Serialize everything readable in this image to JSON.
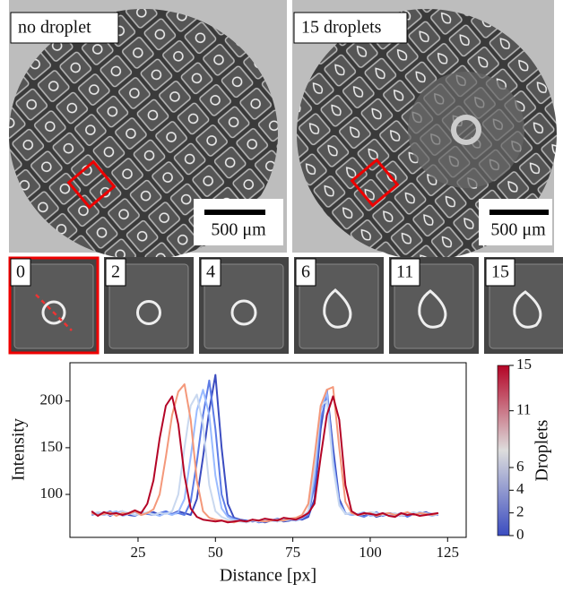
{
  "panels": {
    "top": [
      {
        "label": "no droplet",
        "scale_bar": "500 μm"
      },
      {
        "label": "15 droplets",
        "scale_bar": "500 μm"
      }
    ],
    "thumbnails": [
      "0",
      "2",
      "4",
      "6",
      "11",
      "15"
    ]
  },
  "chart_data": {
    "type": "line",
    "xlabel": "Distance [px]",
    "ylabel": "Intensity",
    "xlim": [
      3,
      131
    ],
    "ylim": [
      54,
      241
    ],
    "xticks": [
      25,
      50,
      75,
      100,
      125
    ],
    "yticks": [
      100,
      150,
      200
    ],
    "x": [
      10,
      12,
      14,
      16,
      18,
      20,
      22,
      24,
      26,
      28,
      30,
      32,
      34,
      36,
      38,
      40,
      42,
      44,
      46,
      48,
      50,
      52,
      54,
      56,
      58,
      60,
      62,
      64,
      66,
      68,
      70,
      72,
      74,
      76,
      78,
      80,
      82,
      84,
      86,
      88,
      90,
      92,
      94,
      96,
      98,
      100,
      102,
      104,
      106,
      108,
      110,
      112,
      114,
      116,
      118,
      120,
      122
    ],
    "series": [
      {
        "color": "#3b4cc0",
        "values": [
          80,
          78,
          81,
          77,
          80,
          82,
          78,
          77,
          80,
          79,
          81,
          78,
          80,
          79,
          82,
          80,
          78,
          95,
          140,
          190,
          228,
          150,
          90,
          75,
          73,
          72,
          71,
          72,
          70,
          72,
          73,
          71,
          72,
          74,
          73,
          76,
          95,
          170,
          212,
          150,
          95,
          80,
          78,
          79,
          77,
          80,
          76,
          78,
          80,
          79,
          77,
          78,
          80,
          79,
          81,
          78,
          80
        ]
      },
      {
        "color": "#5d7ce6",
        "values": [
          78,
          80,
          79,
          82,
          78,
          79,
          80,
          77,
          81,
          79,
          78,
          80,
          82,
          79,
          80,
          78,
          92,
          135,
          185,
          222,
          170,
          100,
          78,
          74,
          72,
          71,
          73,
          70,
          71,
          72,
          74,
          72,
          73,
          72,
          74,
          78,
          110,
          180,
          205,
          140,
          92,
          79,
          80,
          78,
          76,
          79,
          81,
          77,
          79,
          78,
          80,
          76,
          79,
          78,
          80,
          79,
          78
        ]
      },
      {
        "color": "#9abbff",
        "values": [
          81,
          79,
          78,
          80,
          82,
          77,
          79,
          81,
          78,
          80,
          79,
          77,
          80,
          78,
          81,
          95,
          140,
          190,
          212,
          185,
          120,
          85,
          76,
          73,
          72,
          70,
          72,
          71,
          73,
          72,
          71,
          73,
          74,
          72,
          75,
          80,
          120,
          190,
          210,
          135,
          90,
          80,
          78,
          79,
          81,
          77,
          78,
          80,
          79,
          76,
          79,
          80,
          78,
          81,
          79,
          77,
          79
        ]
      },
      {
        "color": "#c9d8ef",
        "values": [
          79,
          81,
          80,
          78,
          79,
          82,
          80,
          78,
          79,
          81,
          78,
          80,
          79,
          82,
          100,
          150,
          195,
          207,
          175,
          110,
          82,
          76,
          73,
          72,
          71,
          70,
          72,
          71,
          72,
          73,
          71,
          72,
          73,
          74,
          76,
          82,
          130,
          195,
          200,
          130,
          88,
          79,
          80,
          78,
          79,
          81,
          80,
          78,
          79,
          80,
          77,
          79,
          81,
          79,
          80,
          78,
          79
        ]
      },
      {
        "color": "#f4987a",
        "values": [
          80,
          78,
          79,
          81,
          77,
          80,
          79,
          82,
          78,
          80,
          84,
          100,
          140,
          185,
          210,
          218,
          180,
          115,
          82,
          75,
          73,
          72,
          71,
          70,
          72,
          71,
          73,
          72,
          71,
          72,
          73,
          72,
          74,
          75,
          78,
          90,
          140,
          195,
          212,
          215,
          150,
          92,
          80,
          78,
          79,
          80,
          77,
          79,
          80,
          78,
          79,
          81,
          78,
          80,
          79,
          78,
          80
        ]
      },
      {
        "color": "#b40426",
        "values": [
          82,
          77,
          81,
          79,
          80,
          78,
          80,
          83,
          80,
          90,
          115,
          160,
          195,
          205,
          175,
          120,
          85,
          76,
          73,
          72,
          71,
          72,
          70,
          71,
          72,
          71,
          73,
          72,
          74,
          73,
          72,
          75,
          74,
          73,
          76,
          80,
          90,
          140,
          185,
          205,
          180,
          110,
          82,
          78,
          80,
          79,
          78,
          80,
          77,
          76,
          80,
          78,
          79,
          77,
          78,
          79,
          80
        ]
      }
    ],
    "colorbar": {
      "label": "Droplets",
      "lim": [
        0,
        15
      ],
      "ticks": [
        0,
        2,
        4,
        6,
        11,
        15
      ],
      "colormap": [
        "#3b4cc0",
        "#dddddd",
        "#b40426"
      ]
    }
  }
}
